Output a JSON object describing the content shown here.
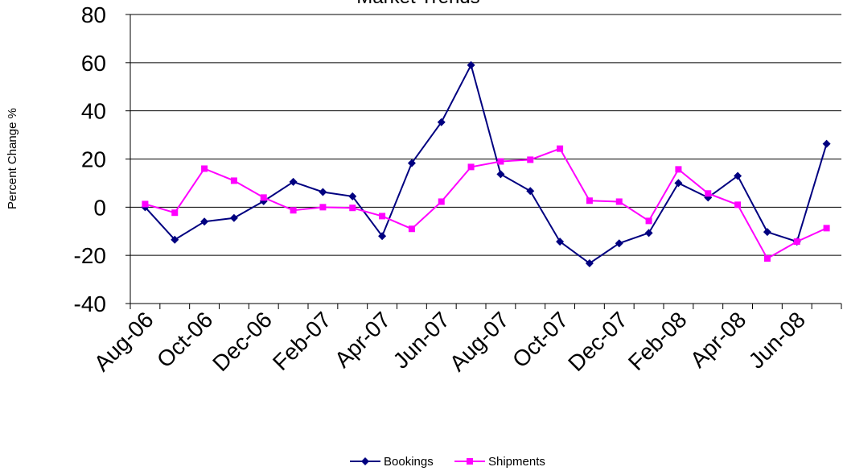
{
  "chart_data": {
    "type": "line",
    "title": "Market Trends",
    "y_label": "Percent Change %",
    "categories": [
      "Aug-06",
      null,
      "Oct-06",
      null,
      "Dec-06",
      null,
      "Feb-07",
      null,
      "Apr-07",
      null,
      "Jun-07",
      null,
      "Aug-07",
      null,
      "Oct-07",
      null,
      "Dec-07",
      null,
      "Feb-08",
      null,
      "Apr-08",
      null,
      "Jun-08",
      null
    ],
    "series": [
      {
        "name": "Bookings",
        "color": "#000080",
        "marker": "diamond",
        "values": [
          0,
          -13.5,
          -6,
          -4.5,
          2.5,
          10.5,
          6.3,
          4.5,
          -12,
          18.3,
          35.3,
          59,
          13.7,
          6.7,
          -14.3,
          -23.3,
          -15,
          -10.7,
          10,
          4,
          13,
          -10.3,
          -14.3,
          26.3
        ]
      },
      {
        "name": "Shipments",
        "color": "#ff00ff",
        "marker": "square",
        "values": [
          1.3,
          -2.3,
          16,
          11,
          4,
          -1.3,
          0,
          -0.3,
          -3.7,
          -9,
          2.3,
          16.7,
          19,
          19.7,
          24.3,
          2.7,
          2.3,
          -5.7,
          15.7,
          5.7,
          1,
          -21.3,
          -14.3,
          -8.7
        ]
      }
    ],
    "ylim": [
      -40,
      80
    ],
    "yticks": [
      -40,
      -20,
      0,
      20,
      40,
      60,
      80
    ],
    "grid": true,
    "legend": "bottom"
  }
}
